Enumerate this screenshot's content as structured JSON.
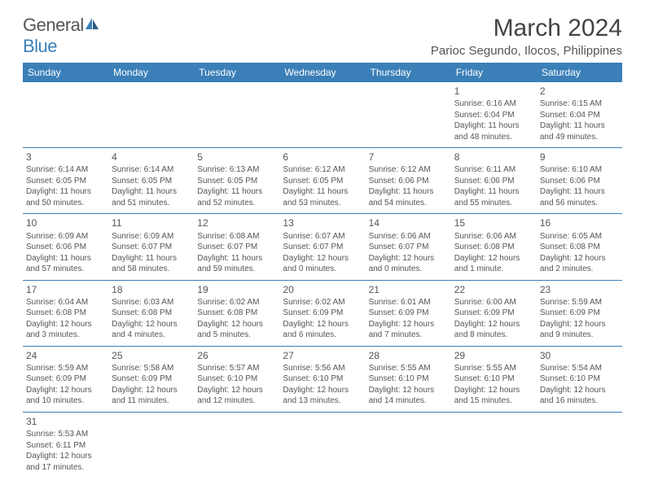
{
  "logo": {
    "word1": "General",
    "word2": "Blue"
  },
  "title": "March 2024",
  "location": "Parioc Segundo, Ilocos, Philippines",
  "colors": {
    "accent": "#3b7fb8",
    "text": "#555555",
    "bg": "#ffffff"
  },
  "dayHeaders": [
    "Sunday",
    "Monday",
    "Tuesday",
    "Wednesday",
    "Thursday",
    "Friday",
    "Saturday"
  ],
  "weeks": [
    [
      null,
      null,
      null,
      null,
      null,
      {
        "n": "1",
        "sunrise": "Sunrise: 6:16 AM",
        "sunset": "Sunset: 6:04 PM",
        "daylight": "Daylight: 11 hours and 48 minutes."
      },
      {
        "n": "2",
        "sunrise": "Sunrise: 6:15 AM",
        "sunset": "Sunset: 6:04 PM",
        "daylight": "Daylight: 11 hours and 49 minutes."
      }
    ],
    [
      {
        "n": "3",
        "sunrise": "Sunrise: 6:14 AM",
        "sunset": "Sunset: 6:05 PM",
        "daylight": "Daylight: 11 hours and 50 minutes."
      },
      {
        "n": "4",
        "sunrise": "Sunrise: 6:14 AM",
        "sunset": "Sunset: 6:05 PM",
        "daylight": "Daylight: 11 hours and 51 minutes."
      },
      {
        "n": "5",
        "sunrise": "Sunrise: 6:13 AM",
        "sunset": "Sunset: 6:05 PM",
        "daylight": "Daylight: 11 hours and 52 minutes."
      },
      {
        "n": "6",
        "sunrise": "Sunrise: 6:12 AM",
        "sunset": "Sunset: 6:05 PM",
        "daylight": "Daylight: 11 hours and 53 minutes."
      },
      {
        "n": "7",
        "sunrise": "Sunrise: 6:12 AM",
        "sunset": "Sunset: 6:06 PM",
        "daylight": "Daylight: 11 hours and 54 minutes."
      },
      {
        "n": "8",
        "sunrise": "Sunrise: 6:11 AM",
        "sunset": "Sunset: 6:06 PM",
        "daylight": "Daylight: 11 hours and 55 minutes."
      },
      {
        "n": "9",
        "sunrise": "Sunrise: 6:10 AM",
        "sunset": "Sunset: 6:06 PM",
        "daylight": "Daylight: 11 hours and 56 minutes."
      }
    ],
    [
      {
        "n": "10",
        "sunrise": "Sunrise: 6:09 AM",
        "sunset": "Sunset: 6:06 PM",
        "daylight": "Daylight: 11 hours and 57 minutes."
      },
      {
        "n": "11",
        "sunrise": "Sunrise: 6:09 AM",
        "sunset": "Sunset: 6:07 PM",
        "daylight": "Daylight: 11 hours and 58 minutes."
      },
      {
        "n": "12",
        "sunrise": "Sunrise: 6:08 AM",
        "sunset": "Sunset: 6:07 PM",
        "daylight": "Daylight: 11 hours and 59 minutes."
      },
      {
        "n": "13",
        "sunrise": "Sunrise: 6:07 AM",
        "sunset": "Sunset: 6:07 PM",
        "daylight": "Daylight: 12 hours and 0 minutes."
      },
      {
        "n": "14",
        "sunrise": "Sunrise: 6:06 AM",
        "sunset": "Sunset: 6:07 PM",
        "daylight": "Daylight: 12 hours and 0 minutes."
      },
      {
        "n": "15",
        "sunrise": "Sunrise: 6:06 AM",
        "sunset": "Sunset: 6:08 PM",
        "daylight": "Daylight: 12 hours and 1 minute."
      },
      {
        "n": "16",
        "sunrise": "Sunrise: 6:05 AM",
        "sunset": "Sunset: 6:08 PM",
        "daylight": "Daylight: 12 hours and 2 minutes."
      }
    ],
    [
      {
        "n": "17",
        "sunrise": "Sunrise: 6:04 AM",
        "sunset": "Sunset: 6:08 PM",
        "daylight": "Daylight: 12 hours and 3 minutes."
      },
      {
        "n": "18",
        "sunrise": "Sunrise: 6:03 AM",
        "sunset": "Sunset: 6:08 PM",
        "daylight": "Daylight: 12 hours and 4 minutes."
      },
      {
        "n": "19",
        "sunrise": "Sunrise: 6:02 AM",
        "sunset": "Sunset: 6:08 PM",
        "daylight": "Daylight: 12 hours and 5 minutes."
      },
      {
        "n": "20",
        "sunrise": "Sunrise: 6:02 AM",
        "sunset": "Sunset: 6:09 PM",
        "daylight": "Daylight: 12 hours and 6 minutes."
      },
      {
        "n": "21",
        "sunrise": "Sunrise: 6:01 AM",
        "sunset": "Sunset: 6:09 PM",
        "daylight": "Daylight: 12 hours and 7 minutes."
      },
      {
        "n": "22",
        "sunrise": "Sunrise: 6:00 AM",
        "sunset": "Sunset: 6:09 PM",
        "daylight": "Daylight: 12 hours and 8 minutes."
      },
      {
        "n": "23",
        "sunrise": "Sunrise: 5:59 AM",
        "sunset": "Sunset: 6:09 PM",
        "daylight": "Daylight: 12 hours and 9 minutes."
      }
    ],
    [
      {
        "n": "24",
        "sunrise": "Sunrise: 5:59 AM",
        "sunset": "Sunset: 6:09 PM",
        "daylight": "Daylight: 12 hours and 10 minutes."
      },
      {
        "n": "25",
        "sunrise": "Sunrise: 5:58 AM",
        "sunset": "Sunset: 6:09 PM",
        "daylight": "Daylight: 12 hours and 11 minutes."
      },
      {
        "n": "26",
        "sunrise": "Sunrise: 5:57 AM",
        "sunset": "Sunset: 6:10 PM",
        "daylight": "Daylight: 12 hours and 12 minutes."
      },
      {
        "n": "27",
        "sunrise": "Sunrise: 5:56 AM",
        "sunset": "Sunset: 6:10 PM",
        "daylight": "Daylight: 12 hours and 13 minutes."
      },
      {
        "n": "28",
        "sunrise": "Sunrise: 5:55 AM",
        "sunset": "Sunset: 6:10 PM",
        "daylight": "Daylight: 12 hours and 14 minutes."
      },
      {
        "n": "29",
        "sunrise": "Sunrise: 5:55 AM",
        "sunset": "Sunset: 6:10 PM",
        "daylight": "Daylight: 12 hours and 15 minutes."
      },
      {
        "n": "30",
        "sunrise": "Sunrise: 5:54 AM",
        "sunset": "Sunset: 6:10 PM",
        "daylight": "Daylight: 12 hours and 16 minutes."
      }
    ],
    [
      {
        "n": "31",
        "sunrise": "Sunrise: 5:53 AM",
        "sunset": "Sunset: 6:11 PM",
        "daylight": "Daylight: 12 hours and 17 minutes."
      },
      null,
      null,
      null,
      null,
      null,
      null
    ]
  ]
}
